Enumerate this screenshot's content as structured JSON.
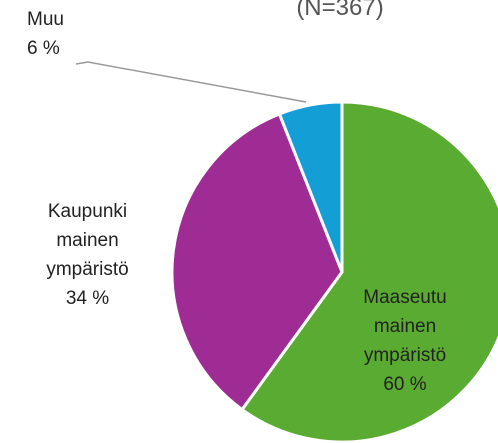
{
  "chart_data": {
    "type": "pie",
    "subtitle": "(N=367)",
    "categories": [
      "Maaseutu mainen ympäristö",
      "Kaupunki mainen ympäristö",
      "Muu"
    ],
    "values": [
      60,
      34,
      6
    ],
    "value_labels": [
      "60 %",
      "34 %",
      "6 %"
    ],
    "colors": [
      "#5aab32",
      "#9e2c94",
      "#139fd6"
    ]
  }
}
